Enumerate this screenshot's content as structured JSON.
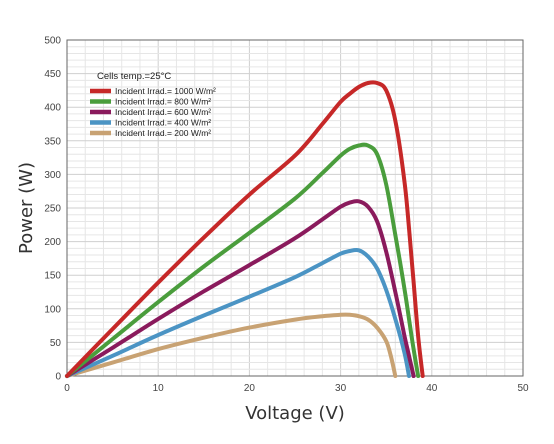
{
  "chart_data": {
    "type": "line",
    "xlabel": "Voltage (V)",
    "ylabel": "Power (W)",
    "xlim": [
      0,
      50
    ],
    "ylim": [
      0,
      500
    ],
    "xticks": [
      0,
      10,
      20,
      30,
      40,
      50
    ],
    "yticks": [
      0,
      50,
      100,
      150,
      200,
      250,
      300,
      350,
      400,
      450,
      500
    ],
    "grid": true,
    "legend_position": "top-left",
    "annotation": "Cells temp.=25°C",
    "series": [
      {
        "name": "Incident Irrad.= 1000 W/m²",
        "color": "#c62828",
        "x": [
          0,
          5,
          10,
          15,
          20,
          25,
          28,
          30,
          31,
          32,
          33,
          34,
          35,
          36,
          37,
          37.5,
          38,
          38.5,
          39
        ],
        "y": [
          0,
          70,
          139,
          206,
          270,
          328,
          375,
          408,
          420,
          430,
          436,
          436,
          425,
          380,
          290,
          220,
          140,
          60,
          0
        ]
      },
      {
        "name": "Incident Irrad.= 800 W/m²",
        "color": "#4a9d3c",
        "x": [
          0,
          5,
          10,
          15,
          20,
          25,
          28,
          30,
          31,
          32,
          33,
          34,
          35,
          36,
          37,
          37.5,
          38,
          38.5
        ],
        "y": [
          0,
          55,
          110,
          163,
          213,
          264,
          302,
          328,
          338,
          343,
          343,
          330,
          285,
          210,
          130,
          85,
          40,
          0
        ]
      },
      {
        "name": "Incident Irrad.= 600 W/m²",
        "color": "#8a1a5c",
        "x": [
          0,
          5,
          10,
          15,
          20,
          25,
          28,
          30,
          31,
          32,
          33,
          34,
          35,
          36,
          37,
          37.5,
          38
        ],
        "y": [
          0,
          42,
          85,
          126,
          165,
          205,
          233,
          252,
          258,
          260,
          252,
          230,
          185,
          125,
          60,
          30,
          0
        ]
      },
      {
        "name": "Incident Irrad.= 400 W/m²",
        "color": "#4b94c4",
        "x": [
          0,
          5,
          10,
          15,
          20,
          25,
          28,
          30,
          31,
          32,
          33,
          34,
          35,
          36,
          37,
          37.5
        ],
        "y": [
          0,
          30,
          61,
          90,
          118,
          147,
          168,
          182,
          186,
          187,
          178,
          160,
          128,
          85,
          35,
          0
        ]
      },
      {
        "name": "Incident Irrad.= 200 W/m²",
        "color": "#c8a273",
        "x": [
          0,
          5,
          10,
          15,
          20,
          25,
          28,
          30,
          31,
          32,
          33,
          34,
          35,
          35.5,
          36
        ],
        "y": [
          0,
          20,
          40,
          57,
          72,
          84,
          89,
          91,
          91,
          89,
          84,
          72,
          52,
          30,
          0
        ]
      }
    ]
  }
}
